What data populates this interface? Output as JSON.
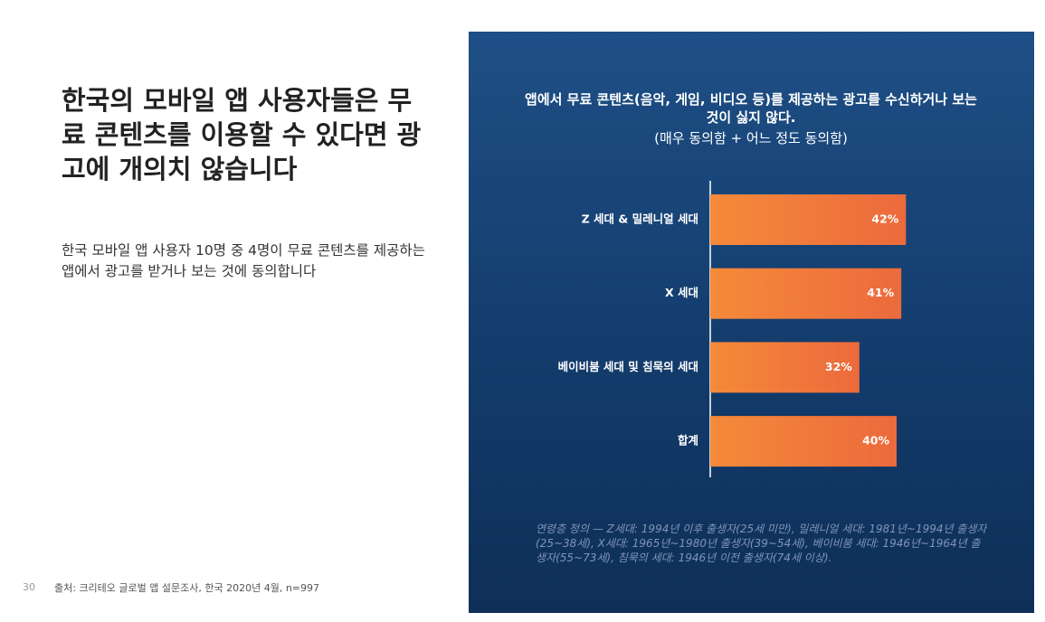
{
  "headline": "한국의 모바일 앱 사용자들은 무료 콘텐츠를 이용할 수 있다면 광고에 개의치 않습니다",
  "body": "한국 모바일 앱 사용자 10명 중 4명이 무료 콘텐츠를 제공하는 앱에서 광고를 받거나 보는 것에 동의합니다",
  "footer": {
    "page": "30",
    "source": "출처: 크리테오 글로벌 앱 설문조사, 한국 2020년 4월, n=997"
  },
  "chart_data": {
    "type": "bar",
    "orientation": "horizontal",
    "title": "앱에서 무료 콘텐츠(음악, 게임, 비디오 등)를 제공하는 광고를 수신하거나 보는 것이 싫지 않다.",
    "subtitle": "(매우 동의함 + 어느 정도 동의함)",
    "categories": [
      "Z 세대 & 밀레니얼 세대",
      "X 세대",
      "베이비붐 세대 및 침묵의 세대",
      "합계"
    ],
    "values": [
      42,
      41,
      32,
      40
    ],
    "value_labels": [
      "42%",
      "41%",
      "32%",
      "40%"
    ],
    "color": "#f0743a",
    "note": "연령층 정의 — Z세대: 1994년 이후 출생자(25세 미만), 밀레니얼 세대: 1981년~1994년 출생자(25~38세), X세대: 1965년~1980년 출생자(39~54세), 베이비붐 세대: 1946년~1964년 출생자(55~73세), 침묵의 세대: 1946년 이전 출생자(74세 이상)."
  }
}
